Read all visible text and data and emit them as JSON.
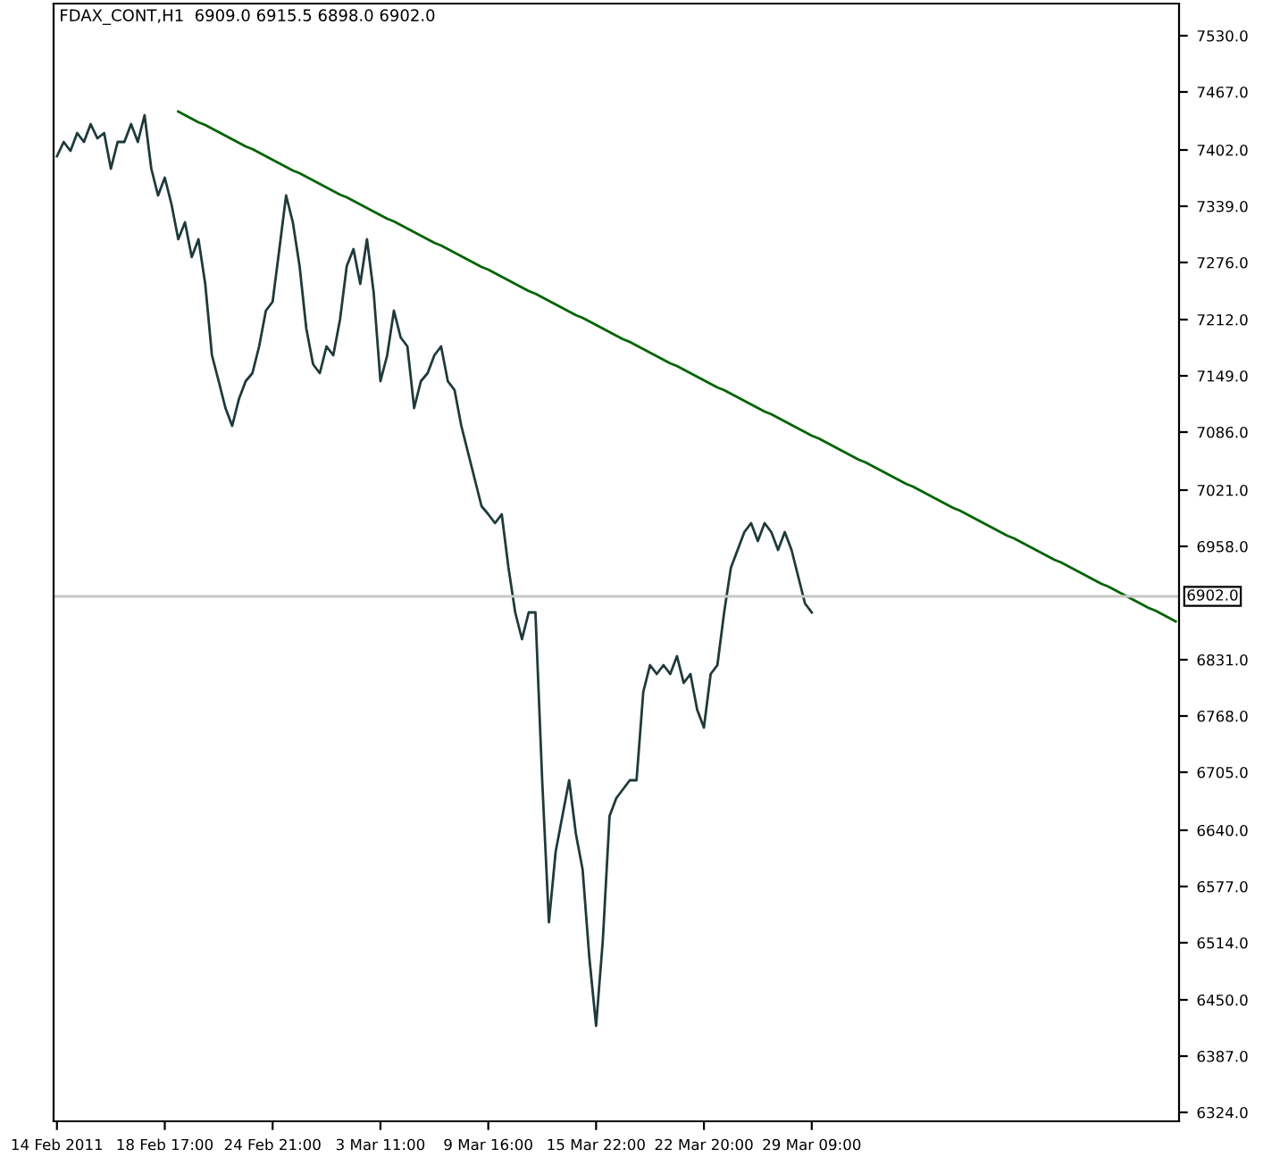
{
  "chart_data": {
    "type": "line",
    "title": "FDAX_CONT,H1  6909.0 6915.5 6898.0 6902.0",
    "categories": [
      "14 Feb 2011",
      null,
      null,
      null,
      null,
      null,
      null,
      null,
      null,
      null,
      null,
      null,
      null,
      null,
      null,
      null,
      "18 Feb 17:00",
      null,
      null,
      null,
      null,
      null,
      null,
      null,
      null,
      null,
      null,
      null,
      null,
      null,
      null,
      null,
      "24 Feb 21:00",
      null,
      null,
      null,
      null,
      null,
      null,
      null,
      null,
      null,
      null,
      null,
      null,
      null,
      null,
      null,
      "3 Mar 11:00",
      null,
      null,
      null,
      null,
      null,
      null,
      null,
      null,
      null,
      null,
      null,
      null,
      null,
      null,
      null,
      "9 Mar 16:00",
      null,
      null,
      null,
      null,
      null,
      null,
      null,
      null,
      null,
      null,
      null,
      null,
      null,
      null,
      null,
      "15 Mar 22:00",
      null,
      null,
      null,
      null,
      null,
      null,
      null,
      null,
      null,
      null,
      null,
      null,
      null,
      null,
      null,
      "22 Mar 20:00",
      null,
      null,
      null,
      null,
      null,
      null,
      null,
      null,
      null,
      null,
      null,
      null,
      null,
      null,
      null,
      "29 Mar 09:00",
      null,
      null,
      null,
      null,
      null,
      null,
      null,
      null,
      null,
      null,
      null,
      null,
      null,
      null,
      null,
      null,
      null,
      null,
      null,
      null,
      null,
      null,
      null,
      null,
      null,
      null,
      null,
      null,
      null,
      null,
      null,
      null,
      null,
      null,
      null,
      null,
      null,
      null,
      null,
      null,
      null,
      null,
      null,
      null,
      null,
      null,
      null,
      null,
      null,
      null,
      null,
      null,
      null,
      null
    ],
    "series": [
      {
        "color": "#1f3a3a",
        "values": [
          7395,
          7411,
          7401,
          7421,
          7411,
          7431,
          7415,
          7421,
          7381,
          7411,
          7411,
          7431,
          7411,
          7441,
          7381,
          7351,
          7371,
          7341,
          7302,
          7321,
          7282,
          7302,
          7252,
          7172,
          7143,
          7113,
          7093,
          7123,
          7143,
          7152,
          7182,
          7222,
          7232,
          7291,
          7351,
          7321,
          7272,
          7202,
          7162,
          7152,
          7182,
          7172,
          7212,
          7272,
          7291,
          7252,
          7302,
          7242,
          7143,
          7172,
          7222,
          7192,
          7182,
          7113,
          7143,
          7152,
          7172,
          7182,
          7143,
          7133,
          7093,
          7063,
          7033,
          7003,
          6994,
          6984,
          6994,
          6934,
          6884,
          6854,
          6884,
          6884,
          6696,
          6537,
          6616,
          6656,
          6696,
          6636,
          6596,
          6497,
          6421,
          6517,
          6656,
          6676,
          6686,
          6696,
          6696,
          6795,
          6825,
          6815,
          6825,
          6815,
          6835,
          6805,
          6815,
          6775,
          6755,
          6815,
          6825,
          6884,
          6934,
          6954,
          6974,
          6984,
          6964,
          6984,
          6974,
          6954,
          6974,
          6954,
          6924,
          6894,
          6884,
          null,
          null,
          null,
          null,
          null,
          null,
          null,
          null,
          null,
          null,
          null,
          null,
          null,
          null,
          null,
          null,
          null,
          null,
          null,
          null,
          null,
          null,
          null,
          null,
          null,
          null,
          null,
          null,
          null,
          null,
          null,
          null,
          null,
          null,
          null,
          null,
          null,
          null,
          null,
          null,
          null,
          null,
          null,
          null,
          null,
          null,
          null,
          null,
          null,
          null,
          null,
          null,
          null,
          null
        ]
      },
      {
        "color": "#006400",
        "values": [
          null,
          null,
          null,
          null,
          null,
          null,
          null,
          null,
          null,
          null,
          null,
          null,
          null,
          null,
          null,
          null,
          null,
          null,
          7445,
          7441,
          7437,
          7433,
          7430,
          7426,
          7422,
          7418,
          7414,
          7410,
          7406,
          7403,
          7399,
          7395,
          7391,
          7387,
          7383,
          7379,
          7376,
          7372,
          7368,
          7364,
          7360,
          7356,
          7352,
          7349,
          7345,
          7341,
          7337,
          7333,
          7329,
          7325,
          7322,
          7318,
          7314,
          7310,
          7306,
          7302,
          7298,
          7295,
          7291,
          7287,
          7283,
          7279,
          7275,
          7271,
          7268,
          7264,
          7260,
          7256,
          7252,
          7248,
          7244,
          7241,
          7237,
          7233,
          7229,
          7225,
          7221,
          7217,
          7214,
          7210,
          7206,
          7202,
          7198,
          7194,
          7190,
          7187,
          7183,
          7179,
          7175,
          7171,
          7167,
          7163,
          7160,
          7156,
          7152,
          7148,
          7144,
          7140,
          7136,
          7133,
          7129,
          7125,
          7121,
          7117,
          7113,
          7109,
          7106,
          7102,
          7098,
          7094,
          7090,
          7086,
          7082,
          7079,
          7075,
          7071,
          7067,
          7063,
          7059,
          7055,
          7052,
          7048,
          7044,
          7040,
          7036,
          7032,
          7028,
          7025,
          7021,
          7017,
          7013,
          7009,
          7005,
          7001,
          6998,
          6994,
          6990,
          6986,
          6982,
          6978,
          6974,
          6970,
          6967,
          6963,
          6959,
          6955,
          6951,
          6947,
          6943,
          6940,
          6936,
          6932,
          6928,
          6924,
          6920,
          6916,
          6913,
          6909,
          6905,
          6901,
          6897,
          6893,
          6889,
          6886,
          6882,
          6878,
          6874
        ]
      }
    ],
    "ylim": [
      6314,
      7566
    ],
    "yticks": [
      {
        "value": 6324,
        "label": "6324.0"
      },
      {
        "value": 6387,
        "label": "6387.0"
      },
      {
        "value": 6450,
        "label": "6450.0"
      },
      {
        "value": 6514,
        "label": "6514.0"
      },
      {
        "value": 6577,
        "label": "6577.0"
      },
      {
        "value": 6640,
        "label": "6640.0"
      },
      {
        "value": 6705,
        "label": "6705.0"
      },
      {
        "value": 6768,
        "label": "6768.0"
      },
      {
        "value": 6831,
        "label": "6831.0"
      },
      {
        "value": 6958,
        "label": "6958.0"
      },
      {
        "value": 7021,
        "label": "7021.0"
      },
      {
        "value": 7086,
        "label": "7086.0"
      },
      {
        "value": 7149,
        "label": "7149.0"
      },
      {
        "value": 7212,
        "label": "7212.0"
      },
      {
        "value": 7276,
        "label": "7276.0"
      },
      {
        "value": 7339,
        "label": "7339.0"
      },
      {
        "value": 7402,
        "label": "7402.0"
      },
      {
        "value": 7467,
        "label": "7467.0"
      },
      {
        "value": 7530,
        "label": "7530.0"
      }
    ],
    "ref_lines": [
      {
        "axis": "y",
        "value": 6902,
        "label": "6902.0",
        "color": "#c8c8c8"
      }
    ],
    "grid": false,
    "legend": false
  }
}
